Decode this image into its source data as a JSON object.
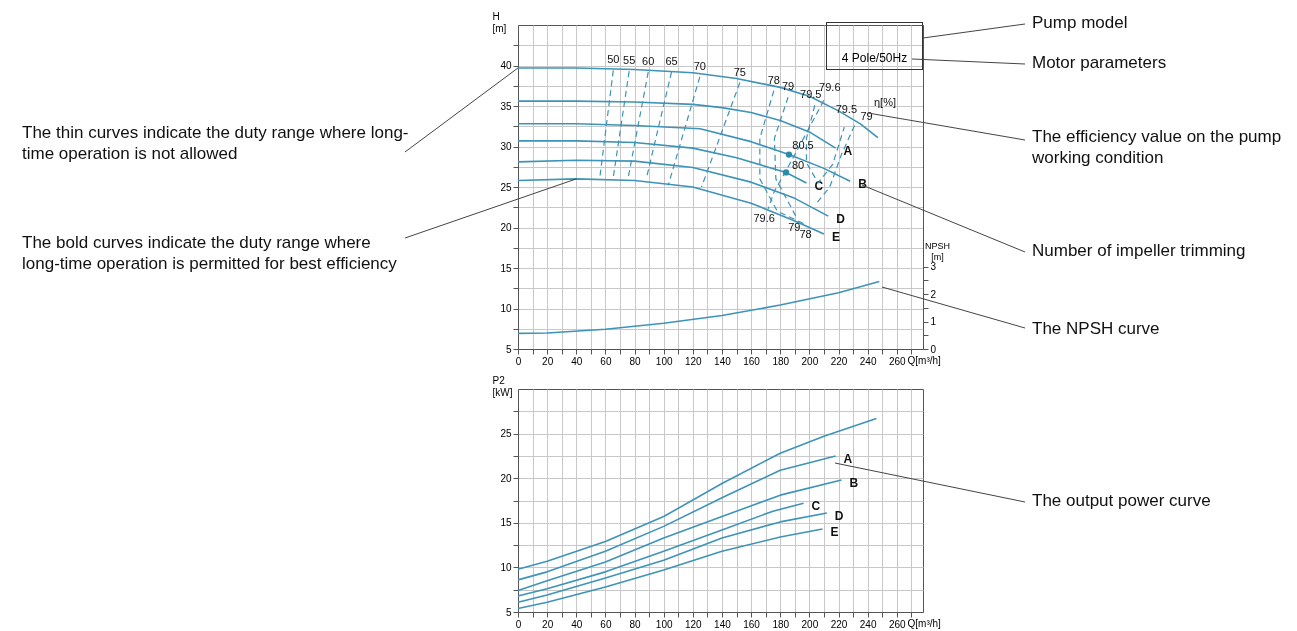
{
  "chart_data": [
    {
      "type": "line",
      "xlabel": "Q[m³/h]",
      "ylabel": "H [m]",
      "y2label": "NPSH [m]",
      "xlim": [
        0,
        278
      ],
      "xticks": [
        0,
        {
          "value": 10,
          "label": null
        },
        20,
        {
          "value": 30,
          "label": null
        },
        40,
        {
          "value": 50,
          "label": null
        },
        60,
        {
          "value": 70,
          "label": null
        },
        80,
        {
          "value": 90,
          "label": null
        },
        100,
        {
          "value": 110,
          "label": null
        },
        120,
        {
          "value": 130,
          "label": null
        },
        140,
        {
          "value": 150,
          "label": null
        },
        160,
        {
          "value": 170,
          "label": null
        },
        180,
        {
          "value": 190,
          "label": null
        },
        200,
        {
          "value": 210,
          "label": null
        },
        220,
        {
          "value": 230,
          "label": null
        },
        240,
        {
          "value": 250,
          "label": null
        },
        260,
        {
          "value": 270,
          "label": null
        }
      ],
      "ylim": [
        5,
        45
      ],
      "yticks": [
        5,
        {
          "value": 7.5,
          "label": null
        },
        10,
        {
          "value": 12.5,
          "label": null
        },
        15,
        {
          "value": 17.5,
          "label": null
        },
        20,
        {
          "value": 22.5,
          "label": null
        },
        25,
        {
          "value": 27.5,
          "label": null
        },
        30,
        {
          "value": 32.5,
          "label": null
        },
        35,
        {
          "value": 37.5,
          "label": null
        },
        40,
        {
          "value": 42.5,
          "label": null
        }
      ],
      "y2lim": [
        0,
        11.8
      ],
      "y2ticks": [
        0,
        {
          "value": 0.5,
          "label": null
        },
        1,
        {
          "value": 1.5,
          "label": null
        },
        2,
        {
          "value": 2.5,
          "label": null
        },
        3
      ],
      "grid": true,
      "line_style": "solid",
      "series": [
        {
          "color": "#3d93b8",
          "x": [
            0,
            40,
            80,
            120,
            150,
            180,
            200,
            220,
            235,
            247
          ],
          "values": [
            39.7,
            39.7,
            39.5,
            39.1,
            38.4,
            37.3,
            36.2,
            34.4,
            32.8,
            31.1
          ]
        },
        {
          "name": "A",
          "color": "#3d93b8",
          "x": [
            0,
            40,
            80,
            120,
            140,
            160,
            180,
            200,
            218
          ],
          "values": [
            35.6,
            35.6,
            35.5,
            35.2,
            34.8,
            34.2,
            33.2,
            31.8,
            29.8
          ]
        },
        {
          "name": "B",
          "color": "#3d93b8",
          "x": [
            0,
            40,
            80,
            125,
            160,
            186,
            210,
            228
          ],
          "values": [
            32.8,
            32.8,
            32.6,
            32.2,
            30.6,
            29.0,
            27.3,
            25.7
          ]
        },
        {
          "name": "C",
          "color": "#3d93b8",
          "x": [
            0,
            40,
            80,
            120,
            150,
            184,
            198
          ],
          "values": [
            30.7,
            30.7,
            30.5,
            29.8,
            28.6,
            26.8,
            25.5
          ]
        },
        {
          "name": "D",
          "color": "#3d93b8",
          "x": [
            0,
            40,
            80,
            120,
            160,
            190,
            213
          ],
          "values": [
            28.1,
            28.3,
            28.2,
            27.4,
            25.6,
            23.6,
            21.4
          ]
        },
        {
          "name": "E",
          "color": "#3d93b8",
          "x": [
            0,
            40,
            80,
            120,
            160,
            190,
            210
          ],
          "values": [
            25.8,
            26.0,
            25.8,
            25.0,
            23.0,
            20.8,
            19.2
          ]
        },
        {
          "axis": "y2",
          "color": "#3d93b8",
          "x": [
            0,
            20,
            60,
            100,
            140,
            180,
            220,
            248
          ],
          "values": [
            0.57,
            0.58,
            0.72,
            0.94,
            1.22,
            1.6,
            2.05,
            2.46
          ]
        },
        {
          "line_style": "dashed",
          "color": "#3d93b8",
          "x": [
            65.4,
            56.2
          ],
          "values": [
            39.4,
            26.2
          ]
        },
        {
          "line_style": "dashed",
          "color": "#3d93b8",
          "x": [
            76.3,
            65.4
          ],
          "values": [
            39.3,
            26.2
          ]
        },
        {
          "line_style": "dashed",
          "color": "#3d93b8",
          "x": [
            89.4,
            75.7
          ],
          "values": [
            39.2,
            26.2
          ]
        },
        {
          "line_style": "dashed",
          "color": "#3d93b8",
          "x": [
            105.4,
            88.3
          ],
          "values": [
            39.2,
            26.2
          ]
        },
        {
          "line_style": "dashed",
          "color": "#3d93b8",
          "x": [
            124.8,
            103.1
          ],
          "values": [
            38.6,
            25.2
          ]
        },
        {
          "line_style": "dashed",
          "color": "#3d93b8",
          "x": [
            152.3,
            126
          ],
          "values": [
            37.9,
            25.0
          ]
        },
        {
          "line_style": "dashed",
          "color": "#3d93b8",
          "x": [
            175.6,
            166,
            166,
            178,
            196
          ],
          "values": [
            36.9,
            31,
            26,
            22,
            20.5
          ]
        },
        {
          "line_style": "dashed",
          "color": "#3d93b8",
          "x": [
            185.4,
            176,
            177,
            191
          ],
          "values": [
            36.1,
            31,
            26,
            21.3
          ]
        },
        {
          "line_style": "dashed",
          "color": "#3d93b8",
          "x": [
            231,
            222,
            214,
            205
          ],
          "values": [
            32.6,
            29,
            25,
            23
          ]
        },
        {
          "line_style": "dashed",
          "color": "#3d93b8",
          "x": [
            203.7,
            198,
            198,
            206,
            216,
            224
          ],
          "values": [
            35.1,
            31,
            28,
            25.5,
            27.8,
            32.4
          ]
        },
        {
          "line_style": "dashed",
          "color": "#3d93b8",
          "x": [
            209.9,
            196,
            184,
            176,
            171.7
          ],
          "values": [
            35.7,
            31,
            27,
            24.5,
            22.3
          ]
        },
        {
          "type": "scatter",
          "marker": "circle",
          "color": "#2a8aa8",
          "x": [
            186,
            184
          ],
          "values": [
            29.0,
            26.8
          ]
        }
      ],
      "annotations": [
        {
          "text": "50",
          "x": 65.4,
          "y": 39.4
        },
        {
          "text": "55",
          "x": 76.3,
          "y": 39.3
        },
        {
          "text": "60",
          "x": 89.4,
          "y": 39.2
        },
        {
          "text": "65",
          "x": 105.4,
          "y": 39.2
        },
        {
          "text": "70",
          "x": 124.8,
          "y": 38.6
        },
        {
          "text": "75",
          "x": 152.3,
          "y": 37.9
        },
        {
          "text": "78",
          "x": 175.6,
          "y": 36.9
        },
        {
          "text": "79",
          "x": 185.4,
          "y": 36.1
        },
        {
          "text": "79.5",
          "x": 203.7,
          "y": 35.1
        },
        {
          "text": "79.6",
          "x": 209.9,
          "y": 35.7
        },
        {
          "text": "79.5",
          "x": 224,
          "y": 32.4
        },
        {
          "text": "79",
          "x": 231,
          "y": 32.6
        },
        "η[%]",
        {
          "text": "79.6",
          "x": 171.7,
          "y": 22.3
        },
        {
          "text": "79",
          "x": 191,
          "y": 21.3
        },
        {
          "text": "78",
          "x": 196,
          "y": 20.5
        },
        {
          "text": "80.5",
          "x": 186,
          "y": 29.0
        },
        {
          "text": "80",
          "x": 184,
          "y": 26.8
        },
        "4 Pole/50Hz",
        "Pump model",
        "Motor parameters",
        "The efficiency value on the pump working condition",
        "Number of impeller trimming",
        "The NPSH curve",
        {
          "text": "The thin curves indicate the duty range where long-time operation is not allowed",
          "x": 0,
          "y": 39.7
        },
        {
          "text": "The bold curves indicate the duty range where long-time operation is permitted for best efficiency",
          "x": 40,
          "y": 26.0
        }
      ]
    },
    {
      "type": "line",
      "xlabel": "Q[m³/h]",
      "ylabel": "P2 [kW]",
      "xlim": [
        0,
        278
      ],
      "xticks": [
        0,
        {
          "value": 10,
          "label": null
        },
        20,
        {
          "value": 30,
          "label": null
        },
        40,
        {
          "value": 50,
          "label": null
        },
        60,
        {
          "value": 70,
          "label": null
        },
        80,
        {
          "value": 90,
          "label": null
        },
        100,
        {
          "value": 110,
          "label": null
        },
        120,
        {
          "value": 130,
          "label": null
        },
        140,
        {
          "value": 150,
          "label": null
        },
        160,
        {
          "value": 170,
          "label": null
        },
        180,
        {
          "value": 190,
          "label": null
        },
        200,
        {
          "value": 210,
          "label": null
        },
        220,
        {
          "value": 230,
          "label": null
        },
        240,
        {
          "value": 250,
          "label": null
        },
        260,
        {
          "value": 270,
          "label": null
        }
      ],
      "ylim": [
        5,
        30
      ],
      "yticks": [
        5,
        {
          "value": 7.5,
          "label": null
        },
        10,
        {
          "value": 12.5,
          "label": null
        },
        15,
        {
          "value": 17.5,
          "label": null
        },
        20,
        {
          "value": 22.5,
          "label": null
        },
        25,
        {
          "value": 27.5,
          "label": null
        }
      ],
      "grid": true,
      "line_style": "solid",
      "series": [
        {
          "color": "#3d93b8",
          "x": [
            0,
            20,
            60,
            100,
            140,
            180,
            210,
            246
          ],
          "values": [
            9.8,
            10.7,
            12.9,
            15.7,
            19.4,
            22.8,
            24.7,
            26.7
          ]
        },
        {
          "name": "A",
          "color": "#3d93b8",
          "x": [
            0,
            20,
            60,
            100,
            140,
            180,
            218
          ],
          "values": [
            8.6,
            9.5,
            11.8,
            14.6,
            17.8,
            20.9,
            22.5
          ]
        },
        {
          "name": "B",
          "color": "#3d93b8",
          "x": [
            0,
            20,
            60,
            100,
            140,
            180,
            222
          ],
          "values": [
            7.4,
            8.5,
            10.6,
            13.3,
            15.7,
            18.1,
            19.8
          ]
        },
        {
          "name": "C",
          "color": "#3d93b8",
          "x": [
            0,
            20,
            60,
            100,
            140,
            175,
            196
          ],
          "values": [
            6.8,
            7.6,
            9.5,
            11.8,
            14.2,
            16.3,
            17.2
          ]
        },
        {
          "name": "D",
          "color": "#3d93b8",
          "x": [
            0,
            20,
            60,
            100,
            140,
            180,
            212
          ],
          "values": [
            6.1,
            6.9,
            8.8,
            10.8,
            13.3,
            15.1,
            16.1
          ]
        },
        {
          "name": "E",
          "color": "#3d93b8",
          "x": [
            0,
            20,
            60,
            100,
            140,
            180,
            209
          ],
          "values": [
            5.4,
            6.1,
            7.8,
            9.7,
            11.8,
            13.4,
            14.3
          ]
        }
      ],
      "annotations": [
        "The output power curve"
      ]
    }
  ]
}
